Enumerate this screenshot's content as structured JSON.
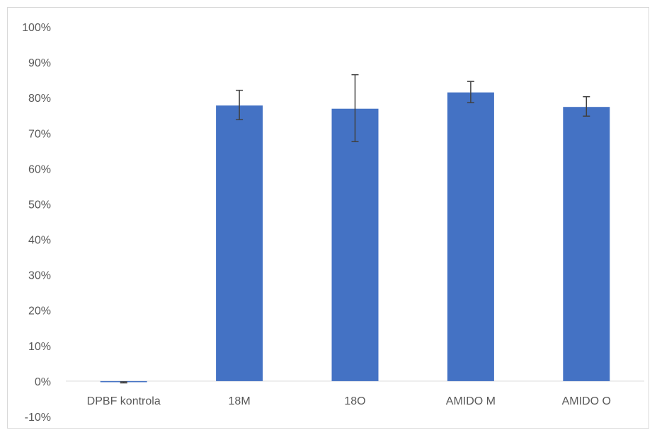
{
  "chart_data": {
    "type": "bar",
    "categories": [
      "DPBF kontrola",
      "18M",
      "18O",
      "AMIDO M",
      "AMIDO O"
    ],
    "series": [
      {
        "values": [
          -0.003,
          0.778,
          0.769,
          0.815,
          0.774
        ],
        "error_low": [
          -0.005,
          0.738,
          0.676,
          0.786,
          0.748
        ],
        "error_high": [
          -0.002,
          0.821,
          0.865,
          0.846,
          0.803
        ]
      }
    ],
    "ylim": [
      -0.1,
      1.0
    ],
    "yticks": [
      -0.1,
      0,
      0.1,
      0.2,
      0.3,
      0.4,
      0.5,
      0.6,
      0.7,
      0.8,
      0.9,
      1.0
    ],
    "ytick_labels": [
      "-10%",
      "0%",
      "10%",
      "20%",
      "30%",
      "40%",
      "50%",
      "60%",
      "70%",
      "80%",
      "90%",
      "100%"
    ],
    "grid": false,
    "legend": "none",
    "title": "",
    "xlabel": "",
    "ylabel": "",
    "colors": {
      "bar": "#4472c4",
      "error_bar": "#404040",
      "axis": "#d9d9d9"
    }
  }
}
